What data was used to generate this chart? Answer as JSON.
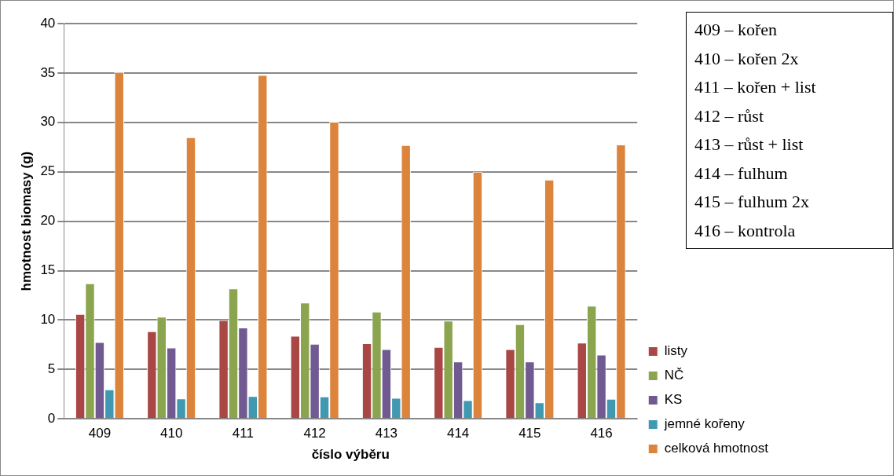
{
  "chart_data": {
    "type": "bar",
    "xlabel": "číslo výběru",
    "ylabel": "hmotnost biomasy (g)",
    "categories": [
      "409",
      "410",
      "411",
      "412",
      "413",
      "414",
      "415",
      "416"
    ],
    "series": [
      {
        "name": "listy",
        "color": "#a94745",
        "values": [
          10.6,
          8.85,
          10.0,
          8.4,
          7.64,
          7.27,
          7.06,
          7.7
        ]
      },
      {
        "name": "NČ",
        "color": "#8ba54e",
        "values": [
          13.7,
          10.33,
          13.2,
          11.76,
          10.85,
          9.94,
          9.58,
          11.45
        ]
      },
      {
        "name": "KS",
        "color": "#715a91",
        "values": [
          7.76,
          7.2,
          9.24,
          7.58,
          7.06,
          5.79,
          5.79,
          6.5
        ]
      },
      {
        "name": "jemné kořeny",
        "color": "#4199b1",
        "values": [
          2.97,
          2.06,
          2.3,
          2.27,
          2.12,
          1.88,
          1.67,
          2.03
        ]
      },
      {
        "name": "celková hmotnost",
        "color": "#dc843c",
        "values": [
          35.1,
          28.5,
          34.8,
          30.06,
          27.7,
          25.0,
          24.2,
          27.76
        ]
      }
    ],
    "ylim": [
      0,
      40
    ],
    "yticks": [
      0,
      5,
      10,
      15,
      20,
      25,
      30,
      35,
      40
    ],
    "grid": "y",
    "legend": "right",
    "annotations": [
      "409 – kořen",
      "410 – kořen 2x",
      "411 – kořen + list",
      "412 – růst",
      "413 – růst + list",
      "414 – fulhum",
      "415 – fulhum 2x",
      "416 – kontrola"
    ]
  }
}
